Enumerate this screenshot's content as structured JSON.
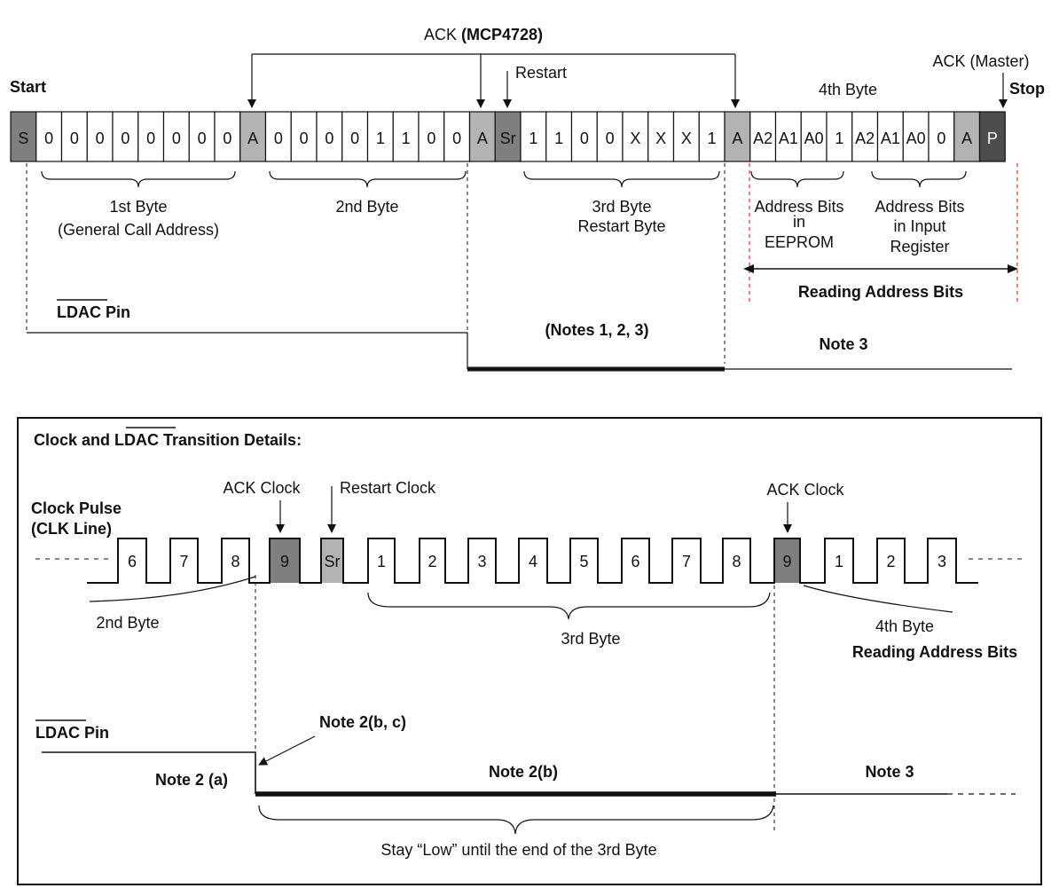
{
  "top": {
    "start_label": "Start",
    "stop_label": "Stop",
    "ack_mcp_prefix": "ACK ",
    "ack_mcp_bold": "(MCP4728)",
    "restart_label": "Restart",
    "ack_master_label": "ACK (Master)",
    "fourth_byte_label": "4th Byte",
    "cells": [
      "S",
      "0",
      "0",
      "0",
      "0",
      "0",
      "0",
      "0",
      "0",
      "A",
      "0",
      "0",
      "0",
      "0",
      "1",
      "1",
      "0",
      "0",
      "A",
      "Sr",
      "1",
      "1",
      "0",
      "0",
      "X",
      "X",
      "X",
      "1",
      "A",
      "A2",
      "A1",
      "A0",
      "1",
      "A2",
      "A1",
      "A0",
      "0",
      "A",
      "P"
    ],
    "byte1_label": [
      "1st Byte",
      "(General Call Address)"
    ],
    "byte2_label": "2nd Byte",
    "byte3_label": [
      "3rd Byte",
      "Restart Byte"
    ],
    "addr_eeprom_label": [
      "Address Bits",
      "in",
      "EEPROM"
    ],
    "addr_input_label": [
      "Address Bits",
      "in Input",
      "Register"
    ],
    "reading_label": "Reading Address Bits",
    "ldac_overline": "LDAC",
    "ldac_suffix": " Pin",
    "notes_123": "(Notes 1, 2, 3)",
    "note3": "Note 3"
  },
  "bottom": {
    "title_prefix": "Clock and ",
    "title_overline": "LDAC",
    "title_suffix": " Transition Details:",
    "clock_pulse_label": [
      "Clock Pulse",
      "(CLK Line)"
    ],
    "ack_clock_label": "ACK Clock",
    "restart_clock_label": "Restart Clock",
    "ack_clock2_label": "ACK Clock",
    "pulses": [
      "6",
      "7",
      "8",
      "9",
      "Sr",
      "1",
      "2",
      "3",
      "4",
      "5",
      "6",
      "7",
      "8",
      "9",
      "1",
      "2",
      "3"
    ],
    "byte2_label": "2nd Byte",
    "byte3_label": "3rd Byte",
    "byte4_label": "4th Byte",
    "reading_label": "Reading Address Bits",
    "ldac_overline": "LDAC",
    "ldac_suffix": " Pin",
    "note2bc": "Note 2(b, c)",
    "note2a": "Note 2 (a)",
    "note2b": "Note 2(b)",
    "note3": "Note 3",
    "stay_low": "Stay “Low” until the end of the 3rd Byte"
  },
  "colors": {
    "ack_gray": "#b3b3b3",
    "start_gray": "#7f7f7f",
    "stop_dark": "#4d4d4d",
    "guide_red": "#e03030"
  }
}
